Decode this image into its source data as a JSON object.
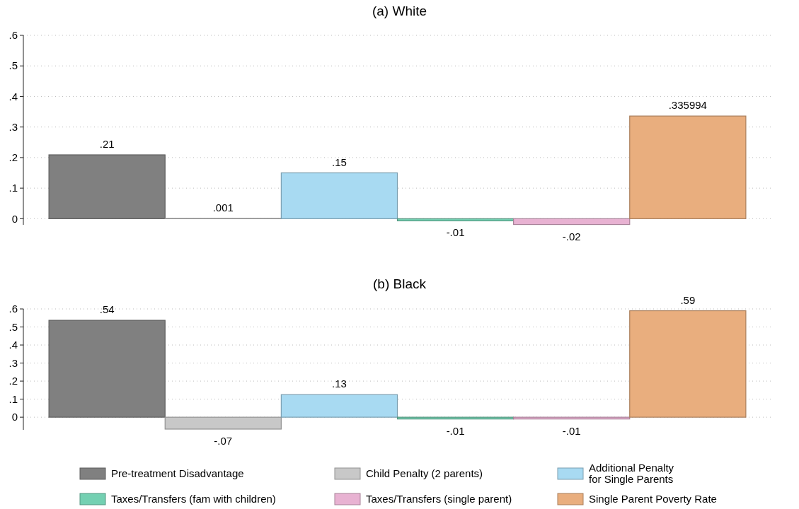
{
  "chart_data": [
    {
      "type": "bar",
      "title": "(a) White",
      "categories": [
        null,
        null,
        null,
        null,
        null,
        null
      ],
      "series": [
        {
          "color": "#808080",
          "values": [
            0.209,
            null,
            null,
            null,
            null,
            null
          ],
          "value_labels": [
            ".21",
            null,
            null,
            null,
            null,
            null
          ]
        },
        {
          "color": "#c8c8c8",
          "values": [
            null,
            0.001,
            null,
            null,
            null,
            null
          ],
          "value_labels": [
            null,
            ".001",
            null,
            null,
            null,
            null
          ]
        },
        {
          "color": "#a8daf2",
          "values": [
            null,
            null,
            0.15,
            null,
            null,
            null
          ],
          "value_labels": [
            null,
            null,
            ".15",
            null,
            null,
            null
          ]
        },
        {
          "color": "#74d0b2",
          "values": [
            null,
            null,
            null,
            -0.007,
            null,
            null
          ],
          "value_labels": [
            null,
            null,
            null,
            "-.01",
            null,
            null
          ]
        },
        {
          "color": "#e8b2d2",
          "values": [
            null,
            null,
            null,
            null,
            -0.019,
            null
          ],
          "value_labels": [
            null,
            null,
            null,
            null,
            "-.02",
            null
          ]
        },
        {
          "color": "#e9ae7e",
          "values": [
            null,
            null,
            null,
            null,
            null,
            0.335994
          ],
          "value_labels": [
            null,
            null,
            null,
            null,
            null,
            ".335994"
          ]
        }
      ],
      "ylim": [
        -0.02,
        0.6
      ],
      "yticks": [
        {
          "value": 0,
          "label": "0"
        },
        {
          "value": 0.1,
          "label": ".1"
        },
        {
          "value": 0.2,
          "label": ".2"
        },
        {
          "value": 0.3,
          "label": ".3"
        },
        {
          "value": 0.4,
          "label": ".4"
        },
        {
          "value": 0.5,
          "label": ".5"
        },
        {
          "value": 0.6,
          "label": ".6"
        }
      ],
      "grid": "y",
      "legend": false
    },
    {
      "type": "bar",
      "title": "(b) Black",
      "categories": [
        null,
        null,
        null,
        null,
        null,
        null
      ],
      "series": [
        {
          "name": "Pre-treatment Disadvantage",
          "color": "#808080",
          "values": [
            0.537,
            null,
            null,
            null,
            null,
            null
          ],
          "value_labels": [
            ".54",
            null,
            null,
            null,
            null,
            null
          ]
        },
        {
          "name": "Child Penalty (2 parents)",
          "color": "#c8c8c8",
          "values": [
            null,
            -0.066,
            null,
            null,
            null,
            null
          ],
          "value_labels": [
            null,
            "-.07",
            null,
            null,
            null,
            null
          ]
        },
        {
          "name": "Additional Penalty\nfor Single Parents",
          "color": "#a8daf2",
          "values": [
            null,
            null,
            0.125,
            null,
            null,
            null
          ],
          "value_labels": [
            null,
            null,
            ".13",
            null,
            null,
            null
          ]
        },
        {
          "name": "Taxes/Transfers (fam with children)",
          "color": "#74d0b2",
          "values": [
            null,
            null,
            null,
            -0.01,
            null,
            null
          ],
          "value_labels": [
            null,
            null,
            null,
            "-.01",
            null,
            null
          ]
        },
        {
          "name": "Taxes/Transfers (single parent)",
          "color": "#e8b2d2",
          "values": [
            null,
            null,
            null,
            null,
            -0.01,
            null
          ],
          "value_labels": [
            null,
            null,
            null,
            null,
            "-.01",
            null
          ]
        },
        {
          "name": "Single Parent Poverty Rate",
          "color": "#e9ae7e",
          "values": [
            null,
            null,
            null,
            null,
            null,
            0.59
          ],
          "value_labels": [
            null,
            null,
            null,
            null,
            null,
            ".59"
          ]
        }
      ],
      "ylim": [
        -0.07,
        0.6
      ],
      "yticks": [
        {
          "value": 0,
          "label": "0"
        },
        {
          "value": 0.1,
          "label": ".1"
        },
        {
          "value": 0.2,
          "label": ".2"
        },
        {
          "value": 0.3,
          "label": ".3"
        },
        {
          "value": 0.4,
          "label": ".4"
        },
        {
          "value": 0.5,
          "label": ".5"
        },
        {
          "value": 0.6,
          "label": ".6"
        }
      ],
      "grid": "y",
      "legend": "bottom"
    }
  ]
}
